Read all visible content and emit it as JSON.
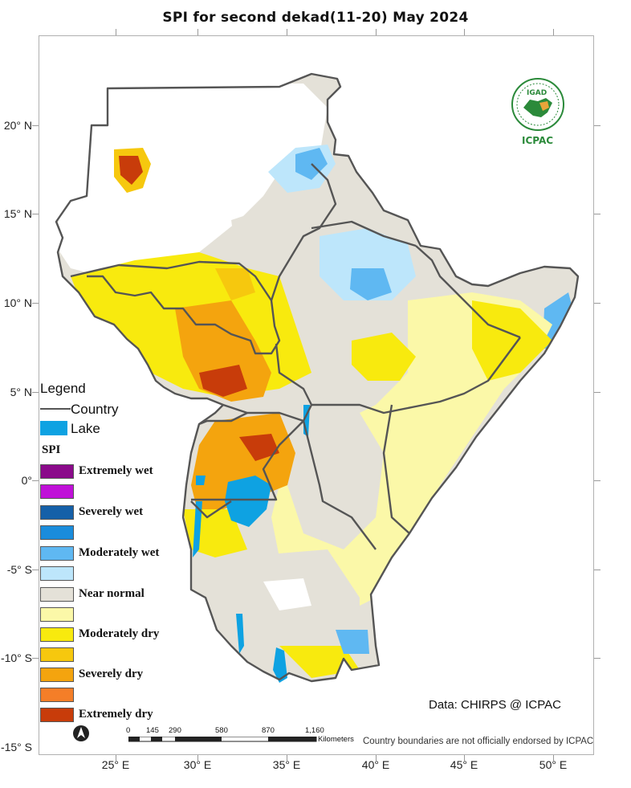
{
  "title": "SPI  for  second dekad(11-20) May 2024",
  "lat_labels": [
    "20° N",
    "15° N",
    "10° N",
    "5° N",
    "0°",
    "-5° S",
    "-10° S",
    "-15° S"
  ],
  "lon_labels": [
    "25° E",
    "30° E",
    "35° E",
    "40° E",
    "45° E",
    "50° E"
  ],
  "logo": {
    "org_top": "IGAD",
    "org_bottom": "ICPAC"
  },
  "legend": {
    "title": "Legend",
    "country_label": "Country",
    "lake_label": "Lake",
    "spi_title": "SPI",
    "classes": [
      {
        "label": "Extremely wet",
        "color": "#8a0a8a"
      },
      {
        "label": "",
        "color": "#c010d8"
      },
      {
        "label": "Severely wet",
        "color": "#1560a8"
      },
      {
        "label": "",
        "color": "#1a8cdc"
      },
      {
        "label": "Moderately wet",
        "color": "#5fb8f2"
      },
      {
        "label": "",
        "color": "#bde6fb"
      },
      {
        "label": "Near normal",
        "color": "#e4e1d8"
      },
      {
        "label": "",
        "color": "#fbf8a8"
      },
      {
        "label": "Moderately dry",
        "color": "#f8ea0e"
      },
      {
        "label": "",
        "color": "#f6c80e"
      },
      {
        "label": "Severely dry",
        "color": "#f4a40e"
      },
      {
        "label": "",
        "color": "#f47e28"
      },
      {
        "label": "Extremely dry",
        "color": "#c83c0a"
      }
    ],
    "lake_color": "#0ea2e2",
    "country_line_color": "#555555"
  },
  "scale_bar": {
    "ticks": [
      "0",
      "145",
      "290",
      "580",
      "870",
      "1,160"
    ],
    "unit": "Kilometers"
  },
  "data_credit": "Data: CHIRPS @ ICPAC",
  "disclaimer": "Country boundaries are not officially endorsed by ICPAC"
}
